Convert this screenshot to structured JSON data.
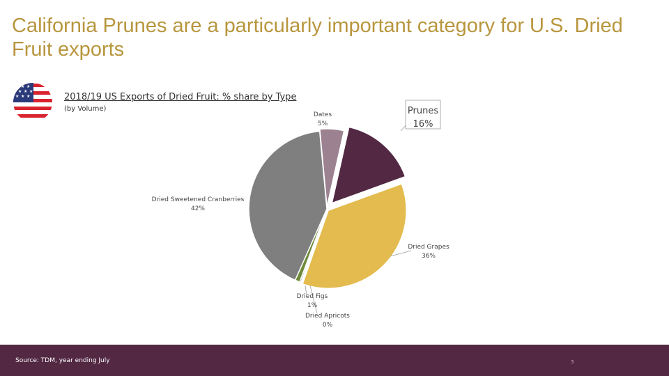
{
  "header": {
    "title": "California Prunes are a particularly important category for U.S. Dried Fruit exports"
  },
  "flag": {
    "icon": "us-flag-icon"
  },
  "chart_data": {
    "type": "pie",
    "title": "2018/19 US Exports of Dried Fruit: % share by Type",
    "subtitle": "(by Volume)",
    "slices": [
      {
        "name": "Prunes",
        "value": 16,
        "label": "16%",
        "color": "#522843"
      },
      {
        "name": "Dried Grapes",
        "value": 36,
        "label": "36%",
        "color": "#e3bb4e"
      },
      {
        "name": "Dried Apricots",
        "value": 0.3,
        "label": "0%",
        "color": "#9a9a9a"
      },
      {
        "name": "Dried Figs",
        "value": 1,
        "label": "1%",
        "color": "#6f8a3a"
      },
      {
        "name": "Dried Sweetened Cranberries",
        "value": 42,
        "label": "42%",
        "color": "#7f7f7f"
      },
      {
        "name": "Dates",
        "value": 5,
        "label": "5%",
        "color": "#9c8290"
      }
    ],
    "legend": "none"
  },
  "footer": {
    "source": "Source: TDM, year ending July",
    "page_number": "3"
  }
}
